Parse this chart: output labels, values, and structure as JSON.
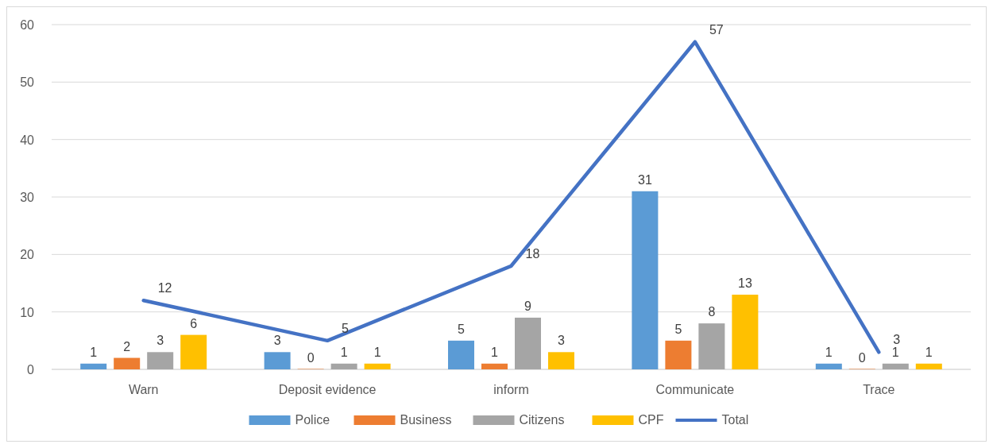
{
  "chart_data": {
    "type": "bar",
    "categories": [
      "Warn",
      "Deposit evidence",
      "inform",
      "Communicate",
      "Trace"
    ],
    "series": [
      {
        "name": "Police",
        "color": "#5b9bd5",
        "values": [
          1,
          3,
          5,
          31,
          1
        ]
      },
      {
        "name": "Business",
        "color": "#ed7d31",
        "values": [
          2,
          0,
          1,
          5,
          0
        ]
      },
      {
        "name": "Citizens",
        "color": "#a5a5a5",
        "values": [
          3,
          1,
          9,
          8,
          1
        ]
      },
      {
        "name": "CPF",
        "color": "#ffc000",
        "values": [
          6,
          1,
          3,
          13,
          1
        ]
      },
      {
        "name": "Total",
        "color": "#4472c4",
        "type": "line",
        "values": [
          12,
          5,
          18,
          57,
          3
        ]
      }
    ],
    "ylim": [
      0,
      60
    ],
    "yticks": [
      0,
      10,
      20,
      30,
      40,
      50,
      60
    ],
    "grid": "y",
    "legend": "bottom",
    "data_labels": true,
    "marker": "none",
    "line_style": "solid"
  }
}
